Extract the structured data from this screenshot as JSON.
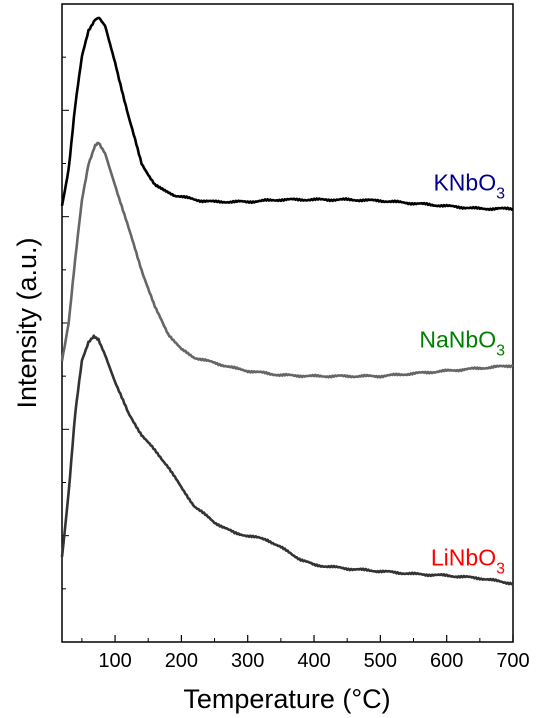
{
  "chart_data": {
    "type": "line",
    "title": "",
    "xlabel": "Temperature (°C)",
    "ylabel": "Intensity (a.u.)",
    "xlim": [
      20,
      700
    ],
    "ylim": [
      0,
      12
    ],
    "x_ticks": [
      "100",
      "200",
      "300",
      "400",
      "500",
      "600",
      "700"
    ],
    "x_tick_values": [
      100,
      200,
      300,
      400,
      500,
      600,
      700
    ],
    "y_tick_labels": "none",
    "grid": false,
    "legend": "inline labels at right end of each curve",
    "series": [
      {
        "name": "KNbO3",
        "label_main": "KNbO",
        "label_sub": "3",
        "label_color": "#00008b",
        "line_color": "#000000",
        "x": [
          20,
          30,
          40,
          50,
          60,
          70,
          76,
          85,
          100,
          120,
          140,
          160,
          175,
          190,
          210,
          230,
          250,
          280,
          300,
          350,
          400,
          450,
          500,
          550,
          600,
          650,
          700
        ],
        "y": [
          8.2,
          8.9,
          10.1,
          11.0,
          11.5,
          11.72,
          11.75,
          11.6,
          10.9,
          9.9,
          9.0,
          8.6,
          8.5,
          8.4,
          8.35,
          8.3,
          8.28,
          8.28,
          8.28,
          8.32,
          8.32,
          8.32,
          8.3,
          8.25,
          8.2,
          8.15,
          8.15
        ]
      },
      {
        "name": "NaNbO3",
        "label_main": "NaNbO",
        "label_sub": "3",
        "label_color": "#008000",
        "line_color": "#666666",
        "x": [
          20,
          30,
          40,
          50,
          60,
          70,
          75,
          85,
          100,
          120,
          140,
          160,
          180,
          200,
          220,
          250,
          280,
          300,
          350,
          400,
          450,
          500,
          550,
          600,
          650,
          700
        ],
        "y": [
          5.3,
          6.0,
          7.2,
          8.3,
          9.0,
          9.35,
          9.4,
          9.2,
          8.6,
          7.8,
          7.0,
          6.3,
          5.8,
          5.5,
          5.35,
          5.25,
          5.15,
          5.1,
          5.02,
          5.0,
          5.0,
          5.0,
          5.05,
          5.1,
          5.15,
          5.2
        ]
      },
      {
        "name": "LiNbO3",
        "label_main": "LiNbO",
        "label_sub": "3",
        "label_color": "#ff0000",
        "line_color": "#333333",
        "x": [
          20,
          30,
          40,
          50,
          60,
          68,
          75,
          85,
          100,
          120,
          140,
          160,
          180,
          200,
          220,
          250,
          280,
          300,
          330,
          350,
          380,
          400,
          450,
          500,
          550,
          600,
          650,
          700
        ],
        "y": [
          1.6,
          2.8,
          4.3,
          5.3,
          5.65,
          5.75,
          5.7,
          5.4,
          4.9,
          4.3,
          3.9,
          3.6,
          3.3,
          2.9,
          2.55,
          2.25,
          2.05,
          2.0,
          1.92,
          1.78,
          1.55,
          1.45,
          1.38,
          1.33,
          1.28,
          1.25,
          1.2,
          1.1
        ]
      }
    ]
  }
}
